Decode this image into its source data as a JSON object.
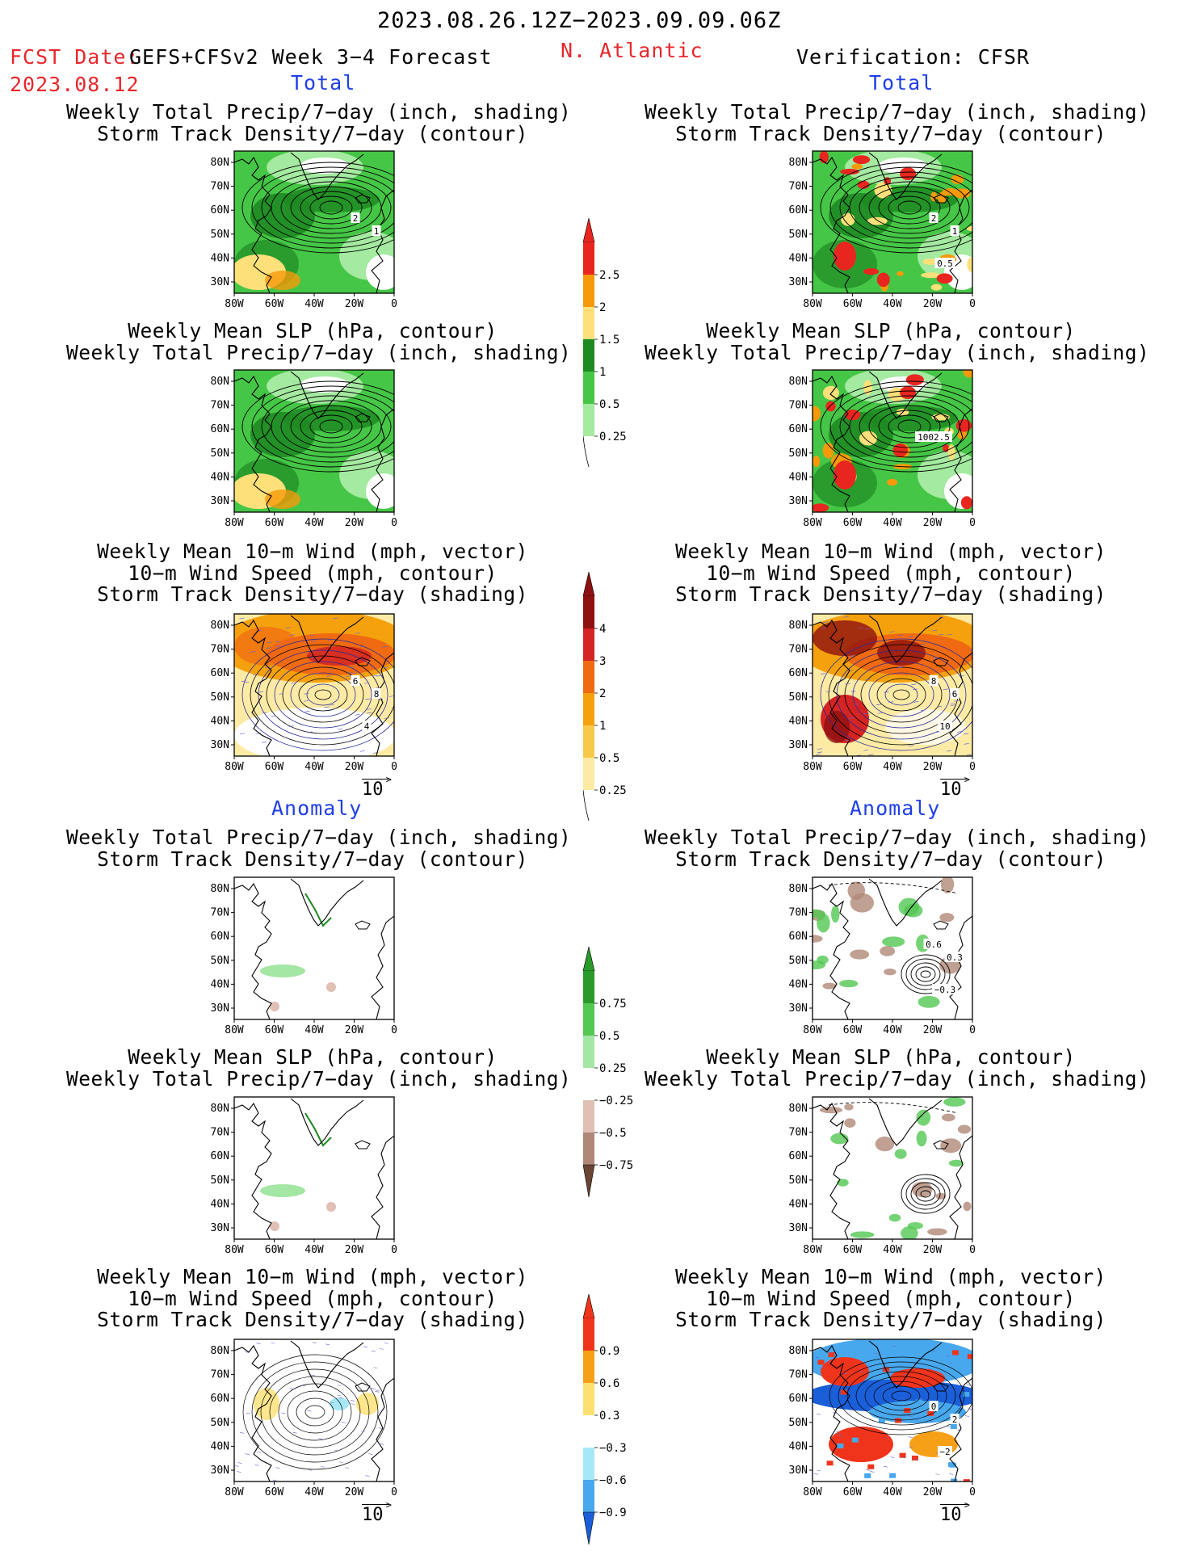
{
  "header": {
    "date_range": "2023.08.26.12Z−2023.09.09.06Z",
    "fcst_label": "FCST Date:",
    "model": "GEFS+CFSv2 Week 3−4 Forecast",
    "region": "N. Atlantic",
    "fcst_date": "2023.08.12",
    "verification": "Verification: CFSR"
  },
  "sections": {
    "total": "Total",
    "anomaly": "Anomaly"
  },
  "panel_titles": {
    "precip_track": [
      "Weekly Total Precip/7−day (inch, shading)",
      "Storm Track Density/7−day (contour)"
    ],
    "slp_precip": [
      "Weekly Mean SLP (hPa, contour)",
      "Weekly Total Precip/7−day (inch, shading)"
    ],
    "wind_track": [
      "Weekly Mean 10−m Wind (mph, vector)",
      "10−m Wind Speed (mph, contour)",
      "Storm Track Density/7−day (shading)"
    ]
  },
  "axes": {
    "lat_ticks": [
      "80N",
      "70N",
      "60N",
      "50N",
      "40N",
      "30N"
    ],
    "lon_ticks": [
      "80W",
      "60W",
      "40W",
      "20W",
      "0"
    ]
  },
  "vector_reference": "10",
  "contour_labels": {
    "f_total_track": [
      "2",
      "1"
    ],
    "v_total_track": [
      "2",
      "1",
      "0.5"
    ],
    "v_total_slp": [
      "1002.5"
    ],
    "f_total_wind": [
      "6",
      "8",
      "4"
    ],
    "v_total_wind": [
      "8",
      "6",
      "10"
    ],
    "v_anom_track": [
      "0.6",
      "0.3",
      "−0.3"
    ],
    "v_anom_wind": [
      "0",
      "2",
      "−2"
    ]
  },
  "colorbars": {
    "total_precip": {
      "labels": [
        "2.5",
        "2",
        "1.5",
        "1",
        "0.5",
        "0.25"
      ],
      "colors": [
        "#e8261f",
        "#f59a0a",
        "#fde07a",
        "#1e8a22",
        "#46c646",
        "#a4eaa0"
      ]
    },
    "total_track": {
      "labels": [
        "4",
        "3",
        "2",
        "1",
        "0.5",
        "0.25"
      ],
      "colors": [
        "#8f1010",
        "#d42424",
        "#f06a12",
        "#f5a10e",
        "#f8c84a",
        "#fdeba5"
      ]
    },
    "anom_precip": {
      "labels": [
        "0.75",
        "0.5",
        "0.25",
        "−0.25",
        "−0.5",
        "−0.75"
      ],
      "colors": [
        "#2a9a2a",
        "#53c853",
        "#a4e6a4",
        "#ffffff",
        "#e0bfb4",
        "#b08878",
        "#6a4434"
      ]
    },
    "anom_track": {
      "labels": [
        "0.9",
        "0.6",
        "0.3",
        "−0.3",
        "−0.6",
        "−0.9"
      ],
      "colors": [
        "#f0341c",
        "#f6a018",
        "#fde070",
        "#ffffff",
        "#a6e8f8",
        "#48a8ee",
        "#1a5ed8"
      ]
    }
  }
}
